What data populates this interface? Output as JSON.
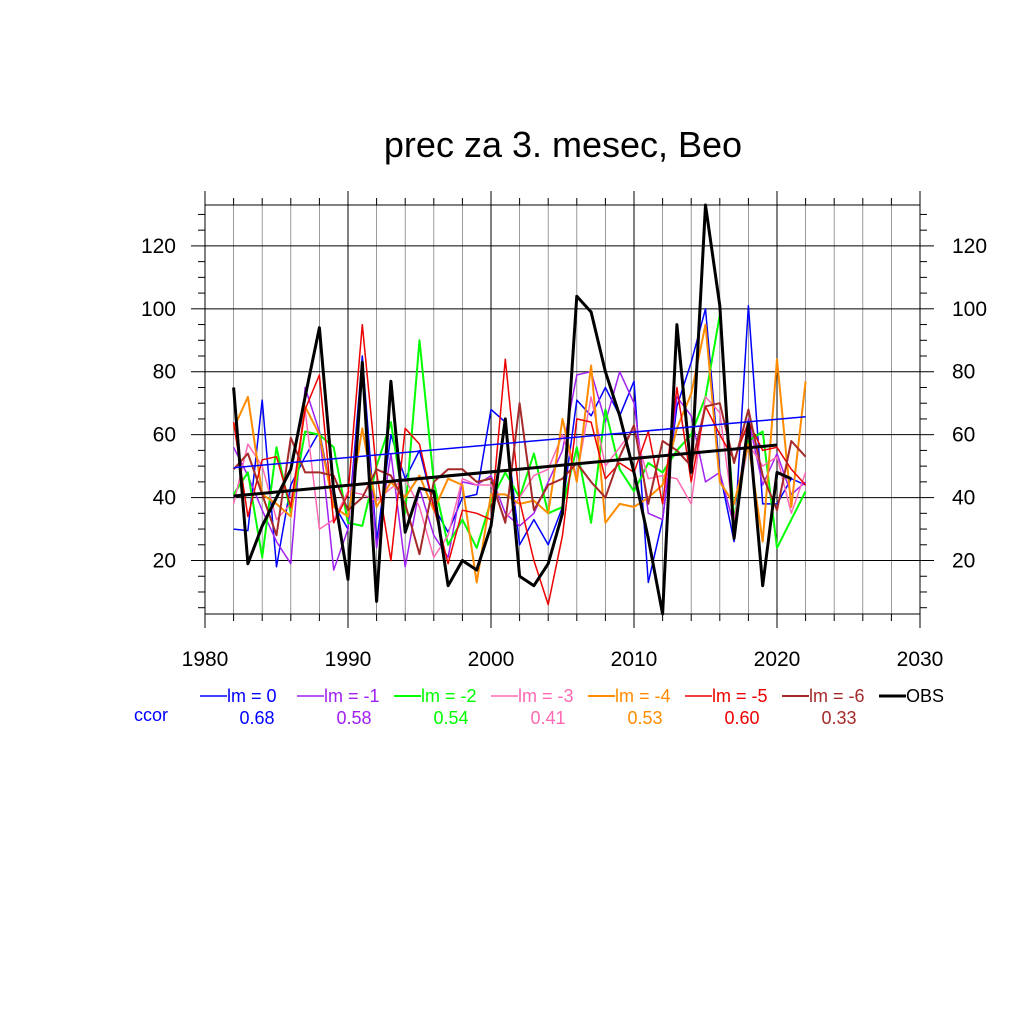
{
  "chart_data": {
    "type": "line",
    "title": "prec za 3. mesec, Beo",
    "xlim": [
      1980,
      2030
    ],
    "ylim": [
      3,
      133
    ],
    "x_ticks": [
      1980,
      1990,
      2000,
      2010,
      2020,
      2030
    ],
    "y_ticks": [
      20,
      40,
      60,
      80,
      100,
      120
    ],
    "grid": true,
    "x": [
      1982,
      1983,
      1984,
      1985,
      1986,
      1987,
      1988,
      1989,
      1990,
      1991,
      1992,
      1993,
      1994,
      1995,
      1996,
      1997,
      1998,
      1999,
      2000,
      2001,
      2002,
      2003,
      2004,
      2005,
      2006,
      2007,
      2008,
      2009,
      2010,
      2011,
      2012,
      2013,
      2014,
      2015,
      2016,
      2017,
      2018,
      2019,
      2020,
      2021,
      2022
    ],
    "series": [
      {
        "name": "lm = 0",
        "color": "#0000ff",
        "ccor": "0.68",
        "width": 1.5,
        "values": [
          30,
          29.5,
          71,
          18,
          44,
          53,
          61,
          38,
          30,
          85,
          26,
          60,
          46,
          55,
          37,
          29,
          40,
          41,
          68,
          64,
          25,
          33,
          25,
          37,
          71,
          66,
          75,
          66,
          77,
          13,
          33,
          69,
          83,
          100,
          48,
          26,
          101,
          38,
          38,
          46,
          44
        ]
      },
      {
        "name": "lm = -1",
        "color": "#a020f0",
        "ccor": "0.58",
        "width": 1.5,
        "values": [
          56,
          47,
          36,
          26,
          19,
          75,
          61,
          17,
          30,
          79,
          24,
          54,
          18,
          43,
          28,
          21,
          45,
          44,
          47,
          35,
          31,
          35,
          45,
          55,
          79,
          80,
          64,
          80,
          70,
          35,
          33,
          72,
          66,
          45,
          48,
          31,
          65,
          44,
          54,
          41,
          45
        ]
      },
      {
        "name": "lm = -2",
        "color": "#00ff00",
        "ccor": "0.54",
        "width": 2,
        "values": [
          41,
          48,
          21,
          56,
          35,
          61,
          60,
          56,
          32,
          31,
          50,
          64,
          35,
          90,
          45,
          25,
          33,
          24,
          39,
          48,
          40,
          54,
          35,
          37,
          56,
          32,
          68,
          49,
          42,
          51,
          48,
          55,
          60,
          72,
          98,
          33,
          58,
          61,
          24,
          33,
          42
        ]
      },
      {
        "name": "lm = -3",
        "color": "#ff69b4",
        "ccor": "0.41",
        "width": 1.5,
        "values": [
          38,
          57,
          50,
          33,
          38,
          68,
          30,
          33,
          42,
          41,
          39,
          43,
          46,
          37,
          21,
          28,
          46,
          44,
          44,
          33,
          40,
          47,
          49,
          60,
          47,
          72,
          50,
          56,
          62,
          46,
          47,
          46,
          38,
          72,
          67,
          33,
          57,
          50,
          53,
          35,
          48
        ]
      },
      {
        "name": "lm = -4",
        "color": "#ff8c00",
        "ccor": "0.53",
        "width": 2,
        "values": [
          62,
          72,
          41,
          38,
          34,
          69,
          60,
          37,
          34,
          62,
          37,
          45,
          40,
          47,
          36,
          46,
          44,
          13,
          41,
          41,
          38,
          39,
          35,
          65,
          45,
          82,
          32,
          38,
          37,
          40,
          44,
          62,
          73,
          95,
          45,
          38,
          57,
          26,
          84,
          37,
          77
        ]
      },
      {
        "name": "lm = -5",
        "color": "#ee0000",
        "ccor": "0.60",
        "width": 1.5,
        "values": [
          64,
          34,
          52,
          53,
          37,
          68,
          79,
          32,
          41,
          95,
          48,
          20,
          62,
          57,
          37,
          19,
          36,
          35,
          33,
          84,
          39,
          20,
          6,
          28,
          65,
          64,
          46,
          51,
          48,
          61,
          38,
          75,
          45,
          69,
          60,
          52,
          64,
          55,
          56,
          49,
          44
        ]
      },
      {
        "name": "lm = -6",
        "color": "#a52a2a",
        "ccor": "0.33",
        "width": 2,
        "values": [
          49,
          54,
          41,
          28,
          59,
          48,
          48,
          47,
          36,
          40,
          49,
          47,
          38,
          22,
          45,
          49,
          49,
          45,
          46,
          32,
          70,
          36,
          44,
          46,
          51,
          45,
          40,
          53,
          63,
          38,
          58,
          55,
          50,
          69,
          70,
          51,
          68,
          47,
          36,
          58,
          53
        ]
      },
      {
        "name": "OBS",
        "color": "#000000",
        "ccor": "",
        "width": 3,
        "values": [
          75,
          19,
          31,
          40,
          49,
          72,
          94,
          42,
          14,
          83,
          7,
          77,
          29,
          43,
          42,
          12,
          20,
          17,
          31,
          65,
          15,
          12,
          19,
          35,
          104,
          99,
          80,
          66,
          48,
          27,
          3,
          95,
          48,
          133,
          101,
          27,
          64,
          12,
          48,
          46,
          null
        ]
      }
    ],
    "trend_lines": [
      {
        "name": "lm = 0",
        "color": "#0000ff",
        "width": 1.5,
        "x": [
          1982,
          2022
        ],
        "y": [
          49.5,
          65.7
        ]
      },
      {
        "name": "OBS",
        "color": "#000000",
        "width": 3,
        "x": [
          1982,
          2020
        ],
        "y": [
          40.5,
          56.7
        ]
      }
    ],
    "legend": {
      "ccor_label": "ccor",
      "placement": "bottom"
    }
  }
}
